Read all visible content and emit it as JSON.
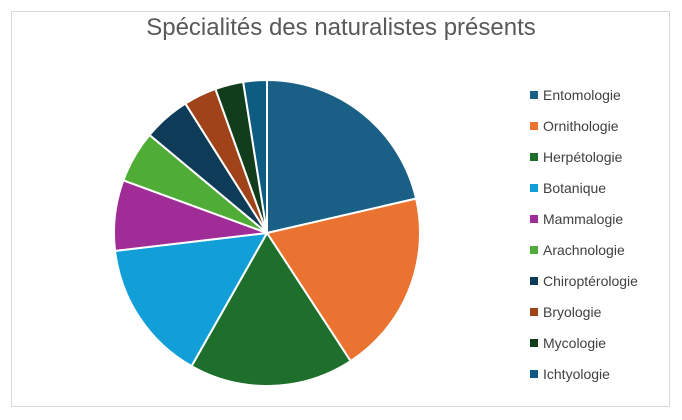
{
  "chart_data": {
    "type": "pie",
    "title": "Spécialités des naturalistes présents",
    "legend_position": "right",
    "categories": [
      "Entomologie",
      "Ornithologie",
      "Herpétologie",
      "Botanique",
      "Mammalogie",
      "Arachnologie",
      "Chiroptérologie",
      "Bryologie",
      "Mycologie",
      "Ichtyologie"
    ],
    "values": [
      21.5,
      19.5,
      17.5,
      15.0,
      7.5,
      5.5,
      5.0,
      3.5,
      3.0,
      2.5
    ],
    "colors": [
      "#1a5f86",
      "#eb7331",
      "#1e6f2b",
      "#129fd8",
      "#a02c97",
      "#4fac36",
      "#0e3c58",
      "#a0421a",
      "#113d1d",
      "#0f5c82"
    ]
  }
}
